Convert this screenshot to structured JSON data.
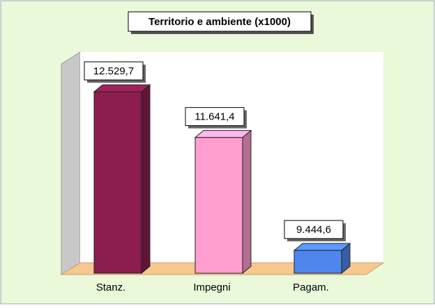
{
  "chart_data": {
    "type": "bar3d",
    "title": "Territorio e ambiente (x1000)",
    "categories": [
      "Stanz.",
      "Impegni",
      "Pagam."
    ],
    "values": [
      12529.7,
      11641.4,
      9444.6
    ],
    "value_labels": [
      "12.529,7",
      "11.641,4",
      "9.444,6"
    ],
    "colors": [
      "#8b1d4f",
      "#ff9fcf",
      "#4f86ee"
    ],
    "ylim": [
      9000,
      13300
    ]
  }
}
